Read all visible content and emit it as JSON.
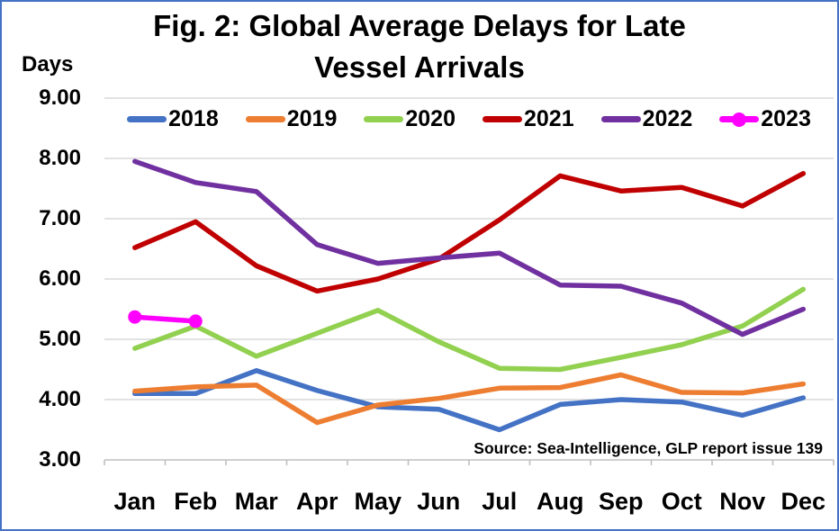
{
  "window": {
    "background": "#FFFFFF",
    "border_color": "#4472C4"
  },
  "chart_data": {
    "type": "line",
    "title_lines": [
      "Fig. 2: Global Average Delays for Late",
      "Vessel Arrivals"
    ],
    "y_axis_title": "Days",
    "categories": [
      "Jan",
      "Feb",
      "Mar",
      "Apr",
      "May",
      "Jun",
      "Jul",
      "Aug",
      "Sep",
      "Oct",
      "Nov",
      "Dec"
    ],
    "ytick_labels": [
      "9.00",
      "8.00",
      "7.00",
      "6.00",
      "5.00",
      "4.00",
      "3.00"
    ],
    "ylim": [
      3,
      9
    ],
    "ytick_step": 1,
    "grid": true,
    "legend_position": "top-inside",
    "colors": {
      "gridline": "#D9D9D9",
      "axis": "#BFBFBF",
      "text": "#000000"
    },
    "source_note": "Source: Sea-Intelligence, GLP report issue 139",
    "series": [
      {
        "name": "2018",
        "color": "#4472C4",
        "values": [
          4.1,
          4.1,
          4.48,
          4.15,
          3.88,
          3.84,
          3.5,
          3.92,
          4.0,
          3.96,
          3.74,
          4.03
        ]
      },
      {
        "name": "2019",
        "color": "#ED7D31",
        "values": [
          4.14,
          4.21,
          4.24,
          3.62,
          3.91,
          4.02,
          4.19,
          4.2,
          4.41,
          4.12,
          4.11,
          4.26
        ]
      },
      {
        "name": "2020",
        "color": "#92D050",
        "values": [
          4.85,
          5.22,
          4.72,
          5.1,
          5.48,
          4.96,
          4.52,
          4.5,
          4.7,
          4.91,
          5.22,
          5.83
        ]
      },
      {
        "name": "2021",
        "color": "#C00000",
        "values": [
          6.52,
          6.95,
          6.22,
          5.8,
          6.0,
          6.33,
          6.98,
          7.71,
          7.46,
          7.52,
          7.21,
          7.75
        ]
      },
      {
        "name": "2022",
        "color": "#7030A0",
        "values": [
          7.95,
          7.6,
          7.45,
          6.57,
          6.26,
          6.35,
          6.43,
          5.9,
          5.88,
          5.6,
          5.08,
          5.5
        ]
      },
      {
        "name": "2023",
        "color": "#FF00FF",
        "marker": "circle",
        "values": [
          5.37,
          5.3
        ]
      }
    ]
  }
}
